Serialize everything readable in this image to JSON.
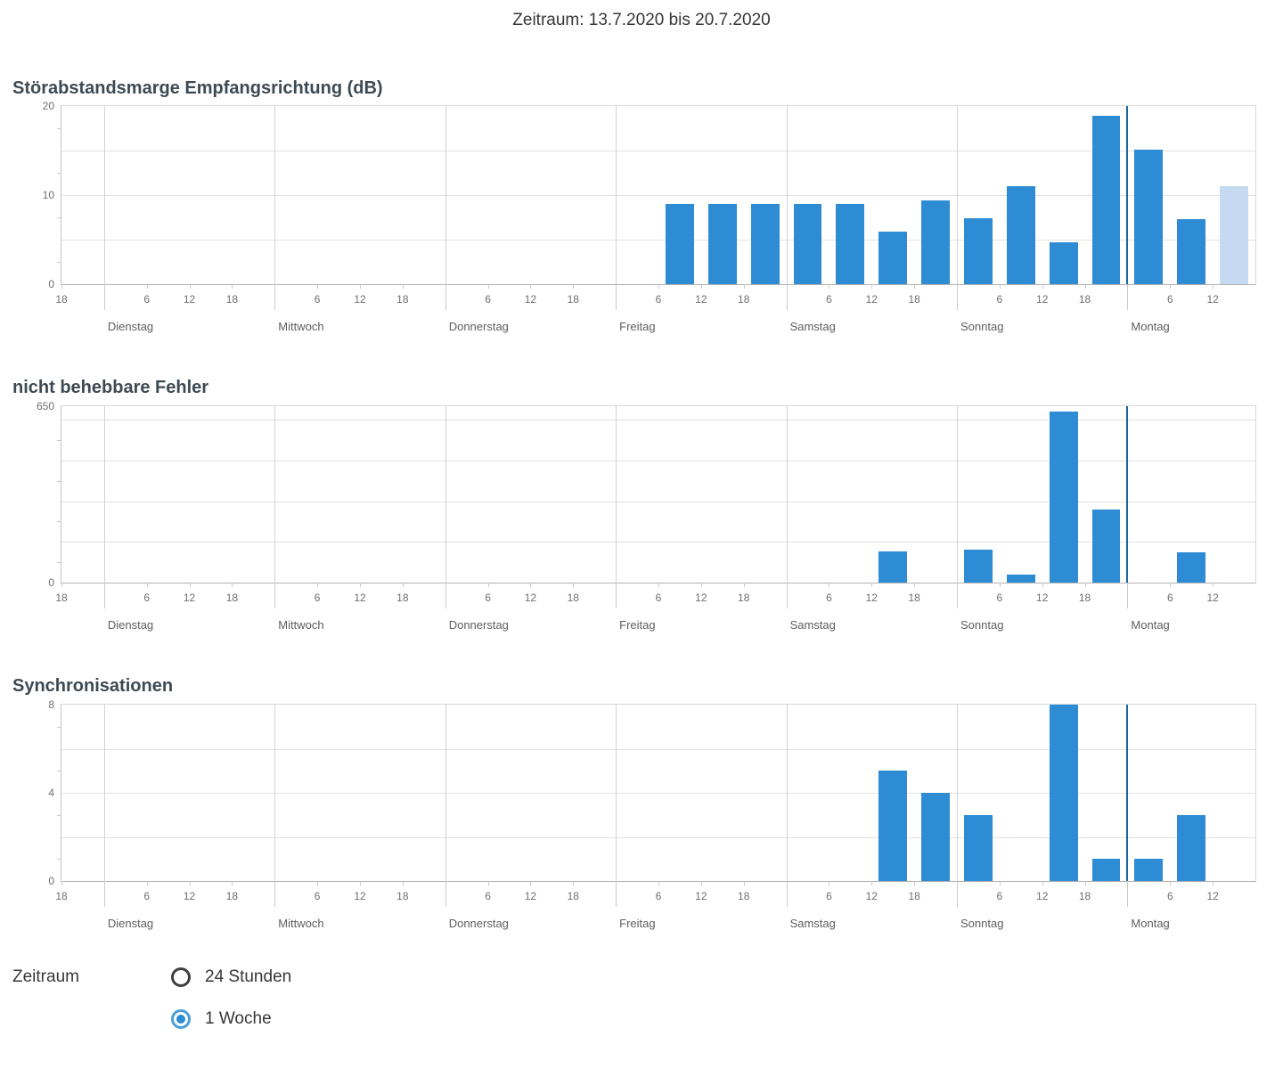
{
  "header": {
    "title": "Zeitraum: 13.7.2020 bis 20.7.2020"
  },
  "colors": {
    "bar": "#2e8cd5",
    "bar_in_progress": "#c5daf0",
    "current_day_line": "#19679f",
    "gridline": "#e2e2e2",
    "day_boundary_line": "#d4d4d4",
    "radio_selected": "#2b8cd3"
  },
  "time_axis": {
    "total_hours": 168,
    "interval_hours": 6,
    "hour_ticks": [
      {
        "t": 0,
        "label": "18"
      },
      {
        "t": 12,
        "label": "6"
      },
      {
        "t": 18,
        "label": "12"
      },
      {
        "t": 24,
        "label": "18"
      },
      {
        "t": 36,
        "label": "6"
      },
      {
        "t": 42,
        "label": "12"
      },
      {
        "t": 48,
        "label": "18"
      },
      {
        "t": 60,
        "label": "6"
      },
      {
        "t": 66,
        "label": "12"
      },
      {
        "t": 72,
        "label": "18"
      },
      {
        "t": 84,
        "label": "6"
      },
      {
        "t": 90,
        "label": "12"
      },
      {
        "t": 96,
        "label": "18"
      },
      {
        "t": 108,
        "label": "6"
      },
      {
        "t": 114,
        "label": "12"
      },
      {
        "t": 120,
        "label": "18"
      },
      {
        "t": 132,
        "label": "6"
      },
      {
        "t": 138,
        "label": "12"
      },
      {
        "t": 144,
        "label": "18"
      },
      {
        "t": 156,
        "label": "6"
      },
      {
        "t": 162,
        "label": "12"
      }
    ],
    "days": [
      {
        "t": 6,
        "label": "Dienstag"
      },
      {
        "t": 30,
        "label": "Mittwoch"
      },
      {
        "t": 54,
        "label": "Donnerstag"
      },
      {
        "t": 78,
        "label": "Freitag"
      },
      {
        "t": 102,
        "label": "Samstag"
      },
      {
        "t": 126,
        "label": "Sonntag"
      },
      {
        "t": 150,
        "label": "Montag"
      }
    ],
    "day_boundaries": [
      6,
      30,
      54,
      78,
      102,
      126,
      150
    ],
    "current_day_line_t": 150
  },
  "chart_data": [
    {
      "type": "bar",
      "title": "Störabstandsmarge Empfangsrichtung (dB)",
      "y_max": 20,
      "y_grid_step": 5,
      "y_tick_labels": [
        {
          "v": 20,
          "label": "20"
        },
        {
          "v": 10,
          "label": "10"
        },
        {
          "v": 0,
          "label": "0"
        }
      ],
      "bars": [
        {
          "day": "Freitag",
          "interval": "06-12",
          "t": 84,
          "value": 9
        },
        {
          "day": "Freitag",
          "interval": "12-18",
          "t": 90,
          "value": 9
        },
        {
          "day": "Freitag",
          "interval": "18-24",
          "t": 96,
          "value": 9
        },
        {
          "day": "Samstag",
          "interval": "00-06",
          "t": 102,
          "value": 9
        },
        {
          "day": "Samstag",
          "interval": "06-12",
          "t": 108,
          "value": 9
        },
        {
          "day": "Samstag",
          "interval": "12-18",
          "t": 114,
          "value": 5.9
        },
        {
          "day": "Samstag",
          "interval": "18-24",
          "t": 120,
          "value": 9.4
        },
        {
          "day": "Sonntag",
          "interval": "00-06",
          "t": 126,
          "value": 7.4
        },
        {
          "day": "Sonntag",
          "interval": "06-12",
          "t": 132,
          "value": 11
        },
        {
          "day": "Sonntag",
          "interval": "12-18",
          "t": 138,
          "value": 4.7
        },
        {
          "day": "Sonntag",
          "interval": "18-24",
          "t": 144,
          "value": 18.9
        },
        {
          "day": "Montag",
          "interval": "00-06",
          "t": 150,
          "value": 15.1
        },
        {
          "day": "Montag",
          "interval": "06-12",
          "t": 156,
          "value": 7.3
        },
        {
          "day": "Montag",
          "interval": "12-18",
          "t": 162,
          "value": 11,
          "in_progress": true
        }
      ]
    },
    {
      "type": "bar",
      "title": "nicht behebbare Fehler",
      "y_max": 650,
      "y_grid_step": 150,
      "y_tick_labels": [
        {
          "v": 650,
          "label": "650"
        },
        {
          "v": 0,
          "label": "0"
        }
      ],
      "bars": [
        {
          "day": "Samstag",
          "interval": "12-18",
          "t": 114,
          "value": 115
        },
        {
          "day": "Sonntag",
          "interval": "00-06",
          "t": 126,
          "value": 122
        },
        {
          "day": "Sonntag",
          "interval": "06-12",
          "t": 132,
          "value": 28
        },
        {
          "day": "Sonntag",
          "interval": "12-18",
          "t": 138,
          "value": 630
        },
        {
          "day": "Sonntag",
          "interval": "18-24",
          "t": 144,
          "value": 270
        },
        {
          "day": "Montag",
          "interval": "06-12",
          "t": 156,
          "value": 112
        }
      ]
    },
    {
      "type": "bar",
      "title": "Synchronisationen",
      "y_max": 8,
      "y_grid_step": 2,
      "y_tick_labels": [
        {
          "v": 8,
          "label": "8"
        },
        {
          "v": 4,
          "label": "4"
        },
        {
          "v": 0,
          "label": "0"
        }
      ],
      "bars": [
        {
          "day": "Samstag",
          "interval": "12-18",
          "t": 114,
          "value": 5
        },
        {
          "day": "Samstag",
          "interval": "18-24",
          "t": 120,
          "value": 4
        },
        {
          "day": "Sonntag",
          "interval": "00-06",
          "t": 126,
          "value": 3
        },
        {
          "day": "Sonntag",
          "interval": "12-18",
          "t": 138,
          "value": 8
        },
        {
          "day": "Sonntag",
          "interval": "18-24",
          "t": 144,
          "value": 1
        },
        {
          "day": "Montag",
          "interval": "00-06",
          "t": 150,
          "value": 1
        },
        {
          "day": "Montag",
          "interval": "06-12",
          "t": 156,
          "value": 3
        }
      ]
    }
  ],
  "controls": {
    "label": "Zeitraum",
    "options": [
      {
        "label": "24 Stunden",
        "selected": false
      },
      {
        "label": "1 Woche",
        "selected": true
      }
    ]
  }
}
